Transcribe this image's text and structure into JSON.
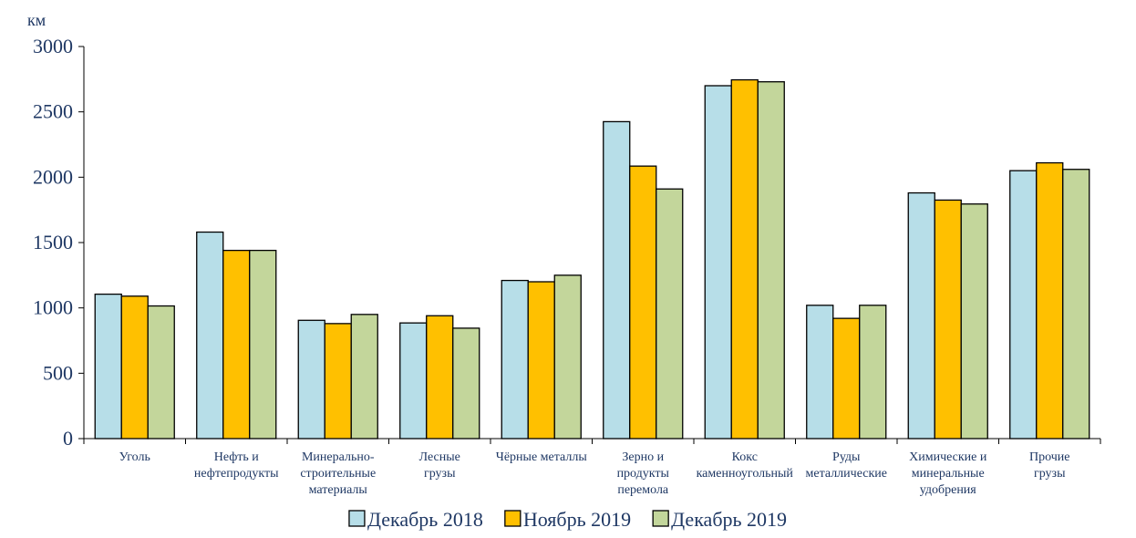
{
  "chart_data": {
    "type": "bar",
    "ylabel": "км",
    "ylim": [
      0,
      3000
    ],
    "yticks": [
      0,
      500,
      1000,
      1500,
      2000,
      2500,
      3000
    ],
    "categories": [
      [
        "Уголь"
      ],
      [
        "Нефть и",
        "нефтепродукты"
      ],
      [
        "Минерально-",
        "строительные",
        "материалы"
      ],
      [
        "Лесные",
        "грузы"
      ],
      [
        "Чёрные металлы"
      ],
      [
        "Зерно и",
        "продукты",
        "перемола"
      ],
      [
        "Кокс",
        "каменноугольный"
      ],
      [
        "Руды",
        "металлические"
      ],
      [
        "Химические и",
        "минеральные",
        "удобрения"
      ],
      [
        "Прочие",
        "грузы"
      ]
    ],
    "series": [
      {
        "name": "Декабрь 2018",
        "color": "#b7dee8",
        "values": [
          1105,
          1580,
          905,
          885,
          1210,
          2425,
          2700,
          1020,
          1880,
          2050
        ]
      },
      {
        "name": "Ноябрь 2019",
        "color": "#ffc000",
        "values": [
          1090,
          1440,
          880,
          940,
          1200,
          2085,
          2745,
          920,
          1825,
          2110
        ]
      },
      {
        "name": "Декабрь 2019",
        "color": "#c3d69b",
        "values": [
          1015,
          1440,
          950,
          845,
          1250,
          1910,
          2730,
          1020,
          1795,
          2060
        ]
      }
    ],
    "grid": false,
    "legend_position": "bottom"
  }
}
